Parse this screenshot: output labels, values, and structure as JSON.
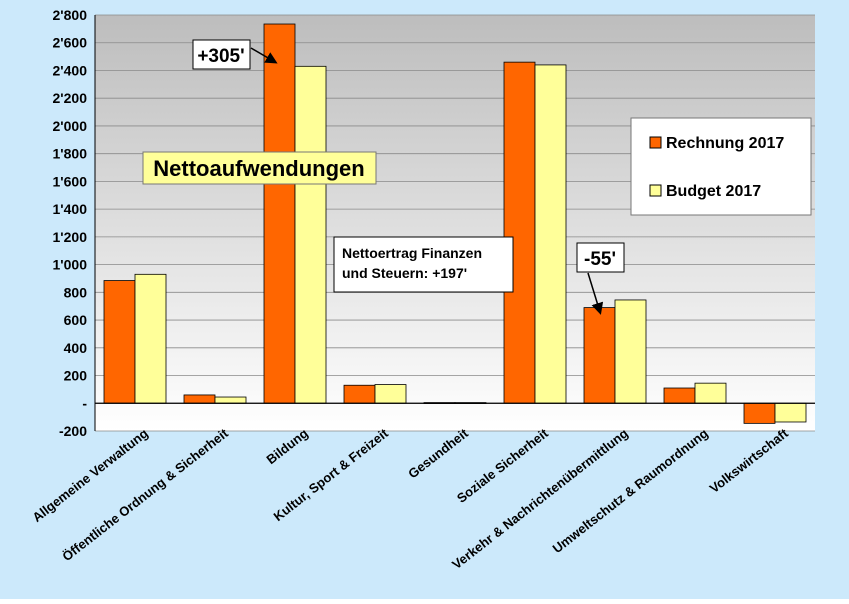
{
  "chart_data": {
    "type": "bar",
    "title": "Nettoaufwendungen",
    "xlabel": "",
    "ylabel": "",
    "ylim": [
      -200,
      2800
    ],
    "ytick_labels": [
      "2'800",
      "2'600",
      "2'400",
      "2'200",
      "2'000",
      "1'800",
      "1'600",
      "1'400",
      "1'200",
      "1'000",
      "800",
      "600",
      "400",
      "200",
      "-",
      "-200"
    ],
    "ytick_values": [
      2800,
      2600,
      2400,
      2200,
      2000,
      1800,
      1600,
      1400,
      1200,
      1000,
      800,
      600,
      400,
      200,
      0,
      -200
    ],
    "categories": [
      "Allgemeine Verwaltung",
      "Öffentliche Ordnung & Sicherheit",
      "Bildung",
      "Kultur, Sport & Freizeit",
      "Gesundheit",
      "Soziale Sicherheit",
      "Verkehr & Nachrichtenübermittlung",
      "Umweltschutz & Raumordnung",
      "Volkswirtschaft"
    ],
    "series": [
      {
        "name": "Rechnung 2017",
        "color": "#ff6600",
        "values": [
          885,
          60,
          2735,
          130,
          5,
          2460,
          690,
          110,
          -145
        ]
      },
      {
        "name": "Budget 2017",
        "color": "#ffff99",
        "values": [
          930,
          45,
          2430,
          135,
          5,
          2440,
          745,
          145,
          -135
        ]
      }
    ],
    "legend_position": "right",
    "grid": true,
    "colors": {
      "background": "#cce9fb",
      "plot_top": "#bdbdbd",
      "plot_bottom": "#ffffff",
      "title_box": "#ffff99"
    },
    "annotations": [
      {
        "text": "+305'"
      },
      {
        "text": "-55'"
      },
      {
        "text": "Nettoertrag Finanzen\nund Steuern: +197'"
      }
    ]
  }
}
